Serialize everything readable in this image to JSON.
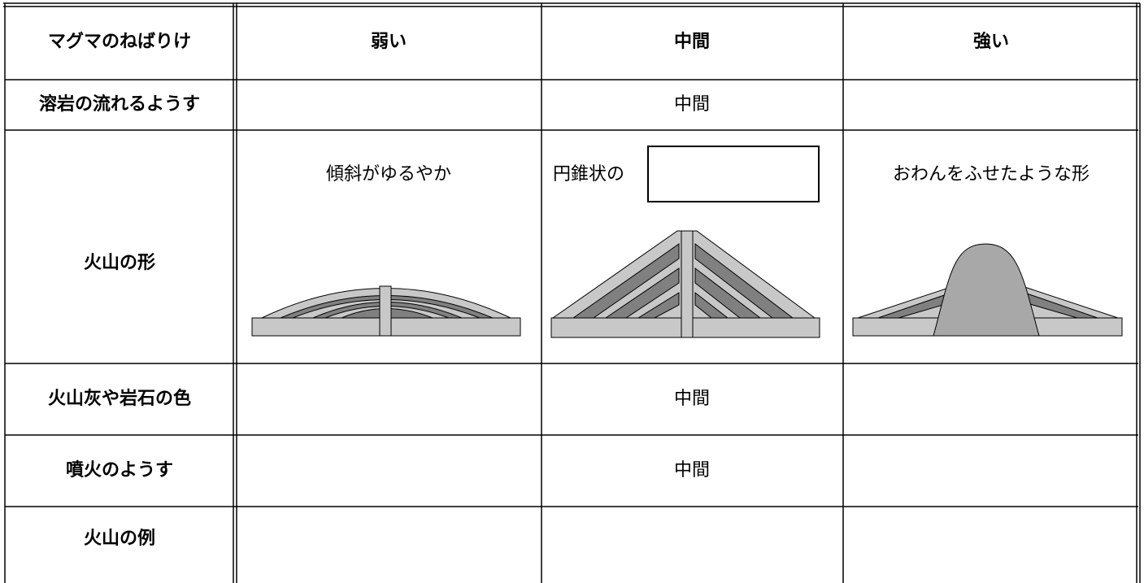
{
  "table": {
    "header": [
      "マグマのねばりけ",
      "弱い",
      "中間",
      "強い"
    ],
    "rows": [
      {
        "label": "溶岩の流れるようす",
        "middle": "中間"
      },
      {
        "label": "火山の形",
        "weak": "傾斜がゆるやか",
        "middle": "円錐状の",
        "strong": "おわんをふせたような形"
      },
      {
        "label": "火山灰や岩石の色",
        "middle": "中間"
      },
      {
        "label": "噴火のようす",
        "middle": "中間"
      },
      {
        "label": "火山の例"
      }
    ]
  }
}
